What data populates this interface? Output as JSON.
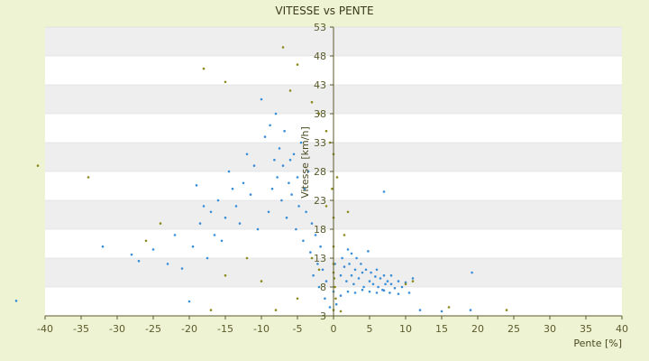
{
  "chart_data": {
    "type": "scatter",
    "title": "VITESSE vs PENTE",
    "xlabel": "Pente [%]",
    "ylabel": "Vitesse [km/h]",
    "xlim": [
      -40,
      40
    ],
    "ylim": [
      3,
      53
    ],
    "x_ticks": [
      -40,
      -35,
      -30,
      -25,
      -20,
      -15,
      -10,
      -5,
      0,
      5,
      10,
      15,
      20,
      25,
      30,
      35,
      40
    ],
    "y_ticks": [
      3,
      8,
      13,
      18,
      23,
      28,
      33,
      38,
      43,
      48,
      53
    ],
    "banded_background": true,
    "colors": {
      "page_bg": "#eef3d4",
      "band_light": "#ffffff",
      "band_dark": "#eeeeee",
      "series_main": "#3b8ed6",
      "series_secondary": "#8c8a1c",
      "axis": "#5a5a2a"
    },
    "series": [
      {
        "color": "#3b8ed6",
        "points": [
          [
            -44,
            5.6
          ],
          [
            -32,
            15
          ],
          [
            -28,
            13.6
          ],
          [
            -27,
            12.5
          ],
          [
            -25,
            14.5
          ],
          [
            -23,
            12
          ],
          [
            -22,
            17
          ],
          [
            -21,
            11.2
          ],
          [
            -20,
            5.5
          ],
          [
            -19.5,
            15
          ],
          [
            -19,
            25.6
          ],
          [
            -18.5,
            19
          ],
          [
            -18,
            22
          ],
          [
            -17.5,
            13
          ],
          [
            -17,
            21
          ],
          [
            -16.5,
            17
          ],
          [
            -16,
            23
          ],
          [
            -15.5,
            16
          ],
          [
            -15,
            20
          ],
          [
            -14.5,
            28
          ],
          [
            -14,
            25
          ],
          [
            -13.5,
            22
          ],
          [
            -13,
            19
          ],
          [
            -12.5,
            26
          ],
          [
            -12,
            31
          ],
          [
            -11.5,
            24
          ],
          [
            -11,
            29
          ],
          [
            -10.5,
            18
          ],
          [
            -10,
            40.5
          ],
          [
            -9.5,
            34
          ],
          [
            -9,
            21
          ],
          [
            -8.8,
            36
          ],
          [
            -8.5,
            25
          ],
          [
            -8.2,
            30
          ],
          [
            -8,
            38
          ],
          [
            -7.8,
            27
          ],
          [
            -7.5,
            32
          ],
          [
            -7.2,
            23
          ],
          [
            -7,
            29
          ],
          [
            -6.8,
            35
          ],
          [
            -6.5,
            20
          ],
          [
            -6.2,
            26
          ],
          [
            -6,
            30
          ],
          [
            -5.8,
            24
          ],
          [
            -5.5,
            31
          ],
          [
            -5.2,
            18
          ],
          [
            -5,
            27
          ],
          [
            -4.8,
            22
          ],
          [
            -4.5,
            33
          ],
          [
            -4.2,
            16
          ],
          [
            -4,
            25
          ],
          [
            -3.8,
            21
          ],
          [
            -3.5,
            28
          ],
          [
            -3.2,
            14
          ],
          [
            -3,
            19
          ],
          [
            -2.8,
            10
          ],
          [
            -2.5,
            17
          ],
          [
            -2.2,
            12
          ],
          [
            -2,
            8
          ],
          [
            -1.8,
            15
          ],
          [
            -1.5,
            11
          ],
          [
            -1.2,
            6
          ],
          [
            -1,
            9
          ],
          [
            -0.5,
            4.5
          ],
          [
            0,
            7.2
          ],
          [
            0.2,
            12
          ],
          [
            0.4,
            5
          ],
          [
            1,
            10
          ],
          [
            1.2,
            13
          ],
          [
            1.5,
            11.5
          ],
          [
            1.8,
            9
          ],
          [
            2,
            14.5
          ],
          [
            2.2,
            12
          ],
          [
            2.5,
            10
          ],
          [
            2.8,
            8.5
          ],
          [
            3,
            11
          ],
          [
            3.2,
            13
          ],
          [
            3.5,
            9.5
          ],
          [
            3.8,
            12
          ],
          [
            4,
            10.5
          ],
          [
            4.2,
            8
          ],
          [
            4.5,
            11
          ],
          [
            4.8,
            14.2
          ],
          [
            5,
            9
          ],
          [
            5.2,
            10.5
          ],
          [
            5.5,
            8.5
          ],
          [
            5.8,
            9.8
          ],
          [
            6,
            11
          ],
          [
            6.2,
            8
          ],
          [
            6.5,
            9.5
          ],
          [
            6.8,
            7.5
          ],
          [
            7,
            10
          ],
          [
            7.2,
            8.5
          ],
          [
            7.5,
            9
          ],
          [
            7.8,
            7
          ],
          [
            8,
            8.5
          ],
          [
            8.5,
            7.8
          ],
          [
            9,
            9
          ],
          [
            9.5,
            8
          ],
          [
            10,
            8.8
          ],
          [
            10.5,
            7
          ],
          [
            11,
            9.5
          ],
          [
            3,
            7
          ],
          [
            4,
            7.5
          ],
          [
            5,
            7.2
          ],
          [
            6,
            7
          ],
          [
            7,
            7.4
          ],
          [
            12,
            4
          ],
          [
            15,
            3.8
          ],
          [
            19,
            4
          ],
          [
            19.2,
            10.5
          ],
          [
            7,
            24.5
          ],
          [
            2.5,
            13.8
          ],
          [
            1,
            6.5
          ],
          [
            2,
            7.2
          ],
          [
            8,
            10
          ],
          [
            9,
            6.8
          ]
        ]
      },
      {
        "color": "#8c8a1c",
        "points": [
          [
            -41,
            29
          ],
          [
            -34,
            27
          ],
          [
            -26,
            16
          ],
          [
            -24,
            19
          ],
          [
            -18,
            45.8
          ],
          [
            -15,
            43.5
          ],
          [
            -7,
            49.5
          ],
          [
            -5,
            46.5
          ],
          [
            -6,
            42
          ],
          [
            -3,
            40
          ],
          [
            -2,
            38
          ],
          [
            -1,
            35
          ],
          [
            -0.5,
            33
          ],
          [
            0,
            31
          ],
          [
            0.5,
            27
          ],
          [
            -0.2,
            25
          ],
          [
            -1,
            22
          ],
          [
            0,
            20
          ],
          [
            2,
            21
          ],
          [
            1.5,
            17
          ],
          [
            0,
            15
          ],
          [
            -2,
            11
          ],
          [
            -5,
            6
          ],
          [
            -8,
            4
          ],
          [
            -12,
            13
          ],
          [
            -15,
            10
          ],
          [
            -10,
            9
          ],
          [
            -17,
            4
          ],
          [
            0.2,
            8
          ],
          [
            0.1,
            9.5
          ],
          [
            0,
            10.5
          ],
          [
            0.3,
            6
          ],
          [
            0,
            4
          ],
          [
            1,
            3.8
          ],
          [
            10,
            8.5
          ],
          [
            11,
            9
          ],
          [
            16,
            4.5
          ],
          [
            24,
            4
          ],
          [
            0,
            12
          ],
          [
            -3,
            13
          ]
        ]
      }
    ]
  }
}
